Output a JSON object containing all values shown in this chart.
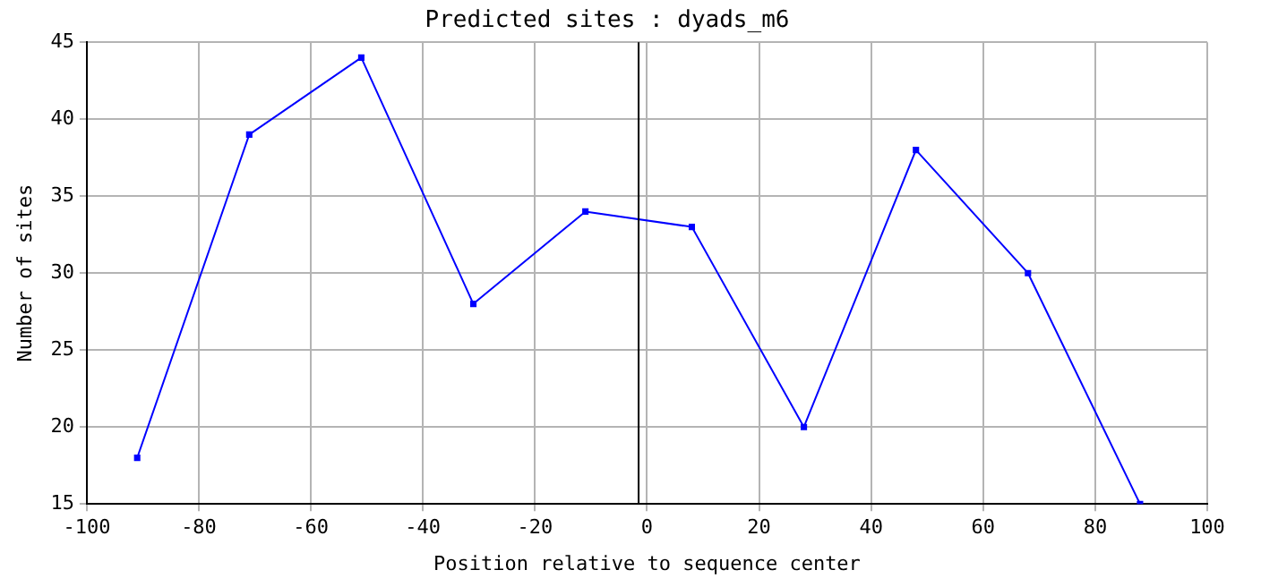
{
  "chart_data": {
    "type": "line",
    "title": "Predicted sites : dyads_m6",
    "xlabel": "Position relative to sequence center",
    "ylabel": "Number of sites",
    "x": [
      -91,
      -71,
      -51,
      -31,
      -11,
      8,
      28,
      48,
      68,
      88
    ],
    "series": [
      {
        "color": "#0000ff",
        "values": [
          18,
          39,
          44,
          28,
          34,
          33,
          20,
          38,
          30,
          15
        ]
      }
    ],
    "xlim": [
      -100,
      100
    ],
    "xticks": [
      -100,
      -80,
      -60,
      -40,
      -20,
      0,
      20,
      40,
      60,
      80,
      100
    ],
    "ylim": [
      15,
      45
    ],
    "yticks": [
      15,
      20,
      25,
      30,
      35,
      40,
      45
    ],
    "ref_lines": [
      {
        "axis": "x",
        "value": -1.5,
        "color": "#000000"
      }
    ],
    "grid": true,
    "legend": false,
    "marker": "square",
    "line_style": "solid"
  }
}
